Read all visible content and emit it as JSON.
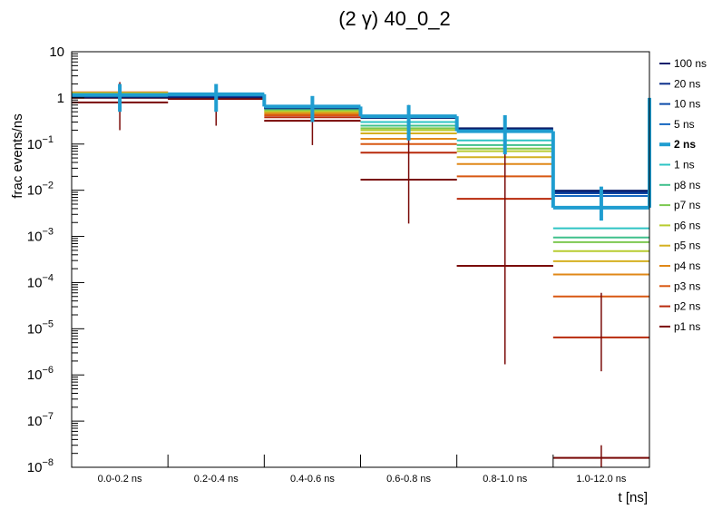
{
  "chart_data": {
    "type": "line",
    "style": "step histogram with vertical error bars",
    "title": "(2 γ) 40_0_2",
    "xlabel": "t [ns]",
    "ylabel": "frac events/ns",
    "yscale": "log",
    "ylim": [
      1e-08,
      10
    ],
    "yticks": [
      {
        "base": "10",
        "exp": "−8"
      },
      {
        "base": "10",
        "exp": "−7"
      },
      {
        "base": "10",
        "exp": "−6"
      },
      {
        "base": "10",
        "exp": "−5"
      },
      {
        "base": "10",
        "exp": "−4"
      },
      {
        "base": "10",
        "exp": "−3"
      },
      {
        "base": "10",
        "exp": "−2"
      },
      {
        "base": "10",
        "exp": "−1"
      },
      {
        "base": "1",
        "exp": ""
      },
      {
        "base": "10",
        "exp": ""
      }
    ],
    "categories": [
      "0.0-0.2 ns",
      "0.2-0.4 ns",
      "0.4-0.6 ns",
      "0.6-0.8 ns",
      "0.8-1.0 ns",
      "1.0-12.0 ns"
    ],
    "legend_position": "right",
    "highlight_series": "2 ns",
    "series": [
      {
        "name": "100 ns",
        "color": "#0a1f6b",
        "values": [
          1.02,
          1.0,
          0.6,
          0.37,
          0.22,
          0.0098
        ]
      },
      {
        "name": "20 ns",
        "color": "#0a2f8a",
        "values": [
          1.05,
          1.0,
          0.6,
          0.37,
          0.21,
          0.0092
        ]
      },
      {
        "name": "10 ns",
        "color": "#0b4aa8",
        "values": [
          1.08,
          1.05,
          0.6,
          0.37,
          0.2,
          0.0086
        ]
      },
      {
        "name": "5 ns",
        "color": "#1668c0",
        "values": [
          1.1,
          1.1,
          0.62,
          0.38,
          0.2,
          0.0075
        ]
      },
      {
        "name": "2 ns",
        "color": "#1f9dd0",
        "values": [
          1.15,
          1.2,
          0.65,
          0.4,
          0.19,
          0.0042
        ]
      },
      {
        "name": "1 ns",
        "color": "#2ec4c4",
        "values": [
          1.18,
          1.2,
          0.62,
          0.3,
          0.12,
          0.0015
        ]
      },
      {
        "name": "p8 ns",
        "color": "#40c08c",
        "values": [
          1.2,
          1.18,
          0.58,
          0.25,
          0.095,
          0.00095
        ]
      },
      {
        "name": "p7 ns",
        "color": "#7cc850",
        "values": [
          1.22,
          1.15,
          0.55,
          0.22,
          0.08,
          0.00075
        ]
      },
      {
        "name": "p6 ns",
        "color": "#b8cc30",
        "values": [
          1.25,
          1.12,
          0.52,
          0.2,
          0.07,
          0.00048
        ]
      },
      {
        "name": "p5 ns",
        "color": "#d4b020",
        "values": [
          1.28,
          1.1,
          0.5,
          0.17,
          0.052,
          0.00029
        ]
      },
      {
        "name": "p4 ns",
        "color": "#e08818",
        "values": [
          1.3,
          1.08,
          0.46,
          0.13,
          0.037,
          0.00015
        ]
      },
      {
        "name": "p3 ns",
        "color": "#d85812",
        "values": [
          1.32,
          1.05,
          0.42,
          0.1,
          0.02,
          5e-05
        ]
      },
      {
        "name": "p2 ns",
        "color": "#b82a0c",
        "values": [
          1.0,
          1.0,
          0.38,
          0.065,
          0.0065,
          6.5e-06
        ]
      },
      {
        "name": "p1 ns",
        "color": "#7a0a08",
        "values": [
          0.8,
          0.95,
          0.32,
          0.017,
          0.00023,
          1.6e-08
        ]
      }
    ],
    "error_bars": [
      {
        "series": "2 ns",
        "color": "#1f9dd0",
        "bins": [
          [
            0.5,
            2.0
          ],
          [
            0.5,
            2.0
          ],
          [
            0.3,
            1.1
          ],
          [
            0.12,
            0.7
          ],
          [
            0.06,
            0.42
          ],
          [
            0.0022,
            0.012
          ]
        ]
      },
      {
        "series": "p1 ns",
        "color": "#7a0a08",
        "bins": [
          [
            0.2,
            2.2
          ],
          [
            0.25,
            1.9
          ],
          [
            0.095,
            1.05
          ],
          [
            0.0019,
            0.7
          ],
          [
            1.7e-06,
            0.38
          ],
          [
            1.2e-06,
            6e-05
          ]
        ]
      },
      {
        "series": "p1 ns",
        "color": "#7a0a08",
        "bins": [
          null,
          null,
          null,
          null,
          null,
          [
            1e-08,
            3e-08
          ]
        ]
      }
    ]
  }
}
